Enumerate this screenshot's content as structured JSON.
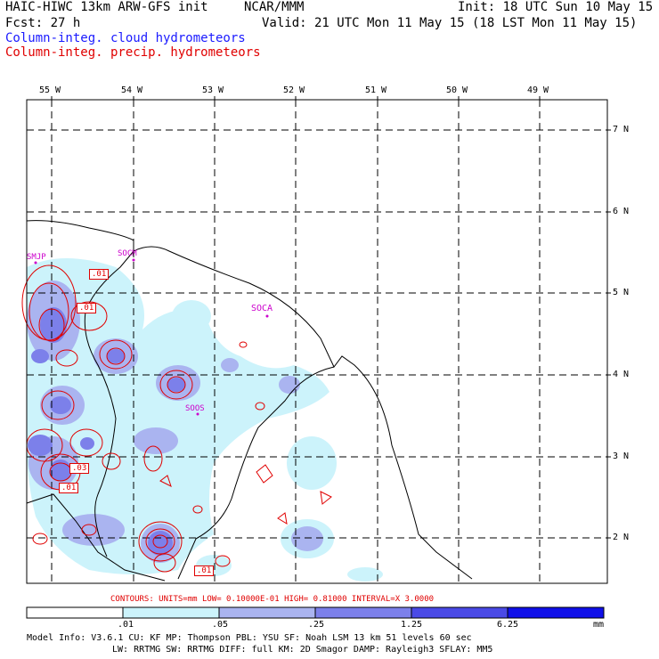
{
  "header": {
    "title": "HAIC-HIWC 13km ARW-GFS init",
    "org": "NCAR/MMM",
    "init": "Init: 18 UTC Sun 10 May 15",
    "fcst": "Fcst:    27 h",
    "valid": "Valid: 21 UTC Mon 11 May 15 (18 LST Mon 11 May 15)",
    "legend_cloud": "Column-integ. cloud hydrometeors",
    "legend_precip": "Column-integ. precip. hydrometeors"
  },
  "map": {
    "lon_labels": [
      "55 W",
      "54 W",
      "53 W",
      "52 W",
      "51 W",
      "50 W",
      "49 W"
    ],
    "lat_labels": [
      "7 N",
      "6 N",
      "5 N",
      "4 N",
      "3 N",
      "2 N"
    ],
    "stations": [
      "SMJP",
      "SOCM",
      "SOCA",
      "SOOS"
    ],
    "contour_labels": [
      ".01",
      ".01",
      ".03",
      ".01",
      ".01"
    ],
    "colors": {
      "cloud_line": "#1a1aff",
      "precip_line": "#e00000",
      "station": "#cc00cc"
    }
  },
  "contour_info": "CONTOURS:  UNITS=mm  LOW= 0.10000E-01  HIGH= 0.81000      INTERVAL=X  3.0000",
  "colorbar": {
    "labels": [
      ".01",
      ".05",
      ".25",
      "1.25",
      "6.25",
      "mm"
    ],
    "colors": [
      "#ffffff",
      "#ccf3fb",
      "#aab4f0",
      "#7c80ea",
      "#4a4ae6",
      "#1010e8"
    ]
  },
  "model_info": {
    "line1": "Model Info: V3.6.1    CU: KF      MP: Thompson    PBL: YSU      SF: Noah LSM    13 km   51 levels  60 sec",
    "line2": "LW: RRTMG   SW: RRTMG  DIFF: full   KM: 2D Smagor DAMP: Rayleigh3  SFLAY: MM5"
  }
}
